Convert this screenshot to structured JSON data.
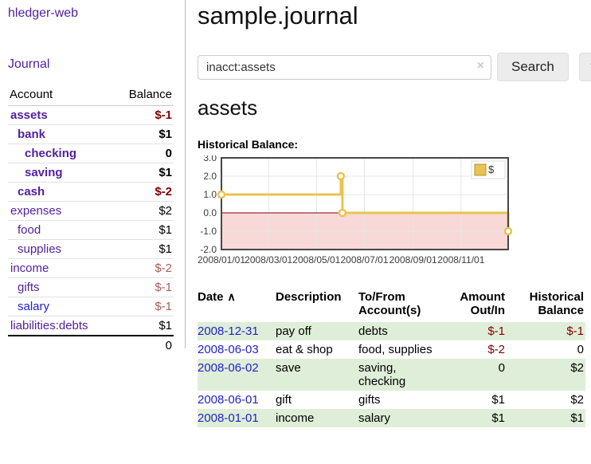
{
  "colors": {
    "link_purple": "#52219f",
    "link_blue": "#2222cc",
    "negative_bold": "#800000",
    "negative_muted": "#aa5a5a",
    "row_shade_green": "#dfeed8",
    "series_gold": "#e9c351",
    "chart_border": "#474747"
  },
  "sidebar": {
    "app_title": "hledger-web",
    "nav": {
      "journal": "Journal"
    },
    "accounts_table": {
      "headers": {
        "account": "Account",
        "balance": "Balance"
      },
      "rows": [
        {
          "name": "assets",
          "depth": 1,
          "bold": true,
          "balance": "$-1",
          "balance_style": "neg-bold"
        },
        {
          "name": "bank",
          "depth": 2,
          "bold": true,
          "balance": "$1",
          "balance_style": "bold"
        },
        {
          "name": "checking",
          "depth": 3,
          "bold": true,
          "balance": "0",
          "balance_style": "bold"
        },
        {
          "name": "saving",
          "depth": 3,
          "bold": true,
          "balance": "$1",
          "balance_style": "bold"
        },
        {
          "name": "cash",
          "depth": 2,
          "bold": true,
          "balance": "$-2",
          "balance_style": "neg-bold"
        },
        {
          "name": "expenses",
          "depth": 1,
          "bold": false,
          "balance": "$2",
          "balance_style": "plain"
        },
        {
          "name": "food",
          "depth": 2,
          "bold": false,
          "balance": "$1",
          "balance_style": "plain"
        },
        {
          "name": "supplies",
          "depth": 2,
          "bold": false,
          "balance": "$1",
          "balance_style": "plain"
        },
        {
          "name": "income",
          "depth": 1,
          "bold": false,
          "balance": "$-2",
          "balance_style": "neg"
        },
        {
          "name": "gifts",
          "depth": 2,
          "bold": false,
          "balance": "$-1",
          "balance_style": "neg"
        },
        {
          "name": "salary",
          "depth": 2,
          "bold": false,
          "balance": "$-1",
          "balance_style": "neg",
          "link_color": "blue"
        },
        {
          "name": "liabilities:debts",
          "depth": 1,
          "bold": false,
          "balance": "$1",
          "balance_style": "plain"
        }
      ],
      "total": "0"
    }
  },
  "header": {
    "title": "sample.journal"
  },
  "search": {
    "query": "inacct:assets",
    "clear_icon": "×",
    "search_label": "Search",
    "help_label": "?"
  },
  "account_page": {
    "heading": "assets",
    "chart_label": "Historical Balance:"
  },
  "chart_data": {
    "type": "line",
    "step": true,
    "title": "Historical Balance",
    "series": [
      {
        "name": "$",
        "color": "#e9c351",
        "points": [
          [
            "2008-01-01",
            1
          ],
          [
            "2008-06-01",
            2
          ],
          [
            "2008-06-03",
            0
          ],
          [
            "2008-12-31",
            -1
          ]
        ]
      }
    ],
    "x_ticks": [
      "2008/01/01",
      "2008/03/01",
      "2008/05/01",
      "2008/07/01",
      "2008/09/01",
      "2008/11/01"
    ],
    "y_ticks": [
      3.0,
      2.0,
      1.0,
      0.0,
      -1.0,
      -2.0
    ],
    "ylim": [
      -2,
      3
    ],
    "xlim": [
      "2008-01-01",
      "2008-12-31"
    ],
    "grid": true,
    "negative_region_fill": "#f9d8d8",
    "zero_line_color": "#7f0000",
    "legend": {
      "label": "$",
      "position": "top-right"
    }
  },
  "register_table": {
    "sort_icon": "∧",
    "headers": {
      "date": "Date",
      "description": "Description",
      "accounts": "To/From Account(s)",
      "amount": "Amount Out/In",
      "balance": "Historical Balance"
    },
    "rows": [
      {
        "date": "2008-12-31",
        "description": "pay off",
        "accounts": "debts",
        "amount": "$-1",
        "amount_neg": true,
        "balance": "$-1",
        "balance_neg": true,
        "shaded": true
      },
      {
        "date": "2008-06-03",
        "description": "eat & shop",
        "accounts": "food, supplies",
        "amount": "$-2",
        "amount_neg": true,
        "balance": "0",
        "balance_neg": false,
        "shaded": false
      },
      {
        "date": "2008-06-02",
        "description": "save",
        "accounts": "saving, checking",
        "amount": "0",
        "amount_neg": false,
        "balance": "$2",
        "balance_neg": false,
        "shaded": true
      },
      {
        "date": "2008-06-01",
        "description": "gift",
        "accounts": "gifts",
        "amount": "$1",
        "amount_neg": false,
        "balance": "$2",
        "balance_neg": false,
        "shaded": false
      },
      {
        "date": "2008-01-01",
        "description": "income",
        "accounts": "salary",
        "amount": "$1",
        "amount_neg": false,
        "balance": "$1",
        "balance_neg": false,
        "shaded": true
      }
    ]
  }
}
